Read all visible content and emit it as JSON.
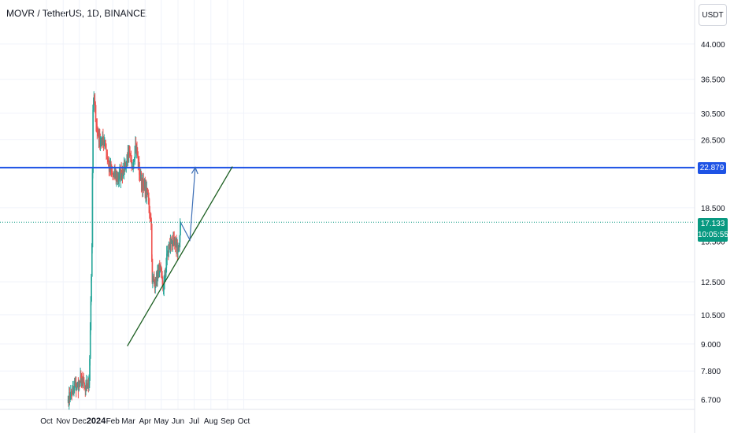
{
  "header": {
    "symbol_title": "MOVR / TetherUS, 1D, BINANCE",
    "currency_button": "USDT"
  },
  "price_axis": {
    "labels": [
      "44.000",
      "36.500",
      "30.500",
      "26.500",
      "18.500",
      "12.500",
      "10.500",
      "9.000",
      "7.800",
      "6.700"
    ],
    "level_badge": "22.879",
    "last_price": "17.133",
    "countdown": "10:05:55",
    "partially_hidden_label": "15.500"
  },
  "time_axis": {
    "labels": [
      "Oct",
      "Nov",
      "Dec",
      "2024",
      "Feb",
      "Mar",
      "Apr",
      "May",
      "Jun",
      "Jul",
      "Aug",
      "Sep",
      "Oct"
    ]
  },
  "colors": {
    "up": "#26a69a",
    "down": "#ef5350",
    "level_line": "#1e53e5",
    "trendline": "#1b5e20",
    "projection": "#3d6fb6",
    "last_price_line": "#089981"
  },
  "chart_data": {
    "type": "candlestick",
    "title": "MOVR / TetherUS, 1D, BINANCE",
    "y_scale": "log",
    "ylim": [
      6.5,
      47
    ],
    "x_range": [
      "2023-10-01",
      "2024-10-05"
    ],
    "horizontal_level": 22.879,
    "last_price": 17.133,
    "approx_daily_closes": [
      {
        "date": "2023-11-10",
        "close": 6.7
      },
      {
        "date": "2023-11-20",
        "close": 7.1
      },
      {
        "date": "2023-12-01",
        "close": 7.3
      },
      {
        "date": "2023-12-06",
        "close": 7.5
      },
      {
        "date": "2023-12-12",
        "close": 7.0
      },
      {
        "date": "2023-12-19",
        "close": 7.4
      },
      {
        "date": "2023-12-24",
        "close": 15.0
      },
      {
        "date": "2023-12-26",
        "close": 31.0
      },
      {
        "date": "2023-12-28",
        "close": 33.0
      },
      {
        "date": "2024-01-03",
        "close": 27.5
      },
      {
        "date": "2024-01-10",
        "close": 26.0
      },
      {
        "date": "2024-01-17",
        "close": 26.5
      },
      {
        "date": "2024-01-24",
        "close": 23.0
      },
      {
        "date": "2024-02-01",
        "close": 22.0
      },
      {
        "date": "2024-02-10",
        "close": 21.5
      },
      {
        "date": "2024-02-20",
        "close": 22.5
      },
      {
        "date": "2024-03-01",
        "close": 24.5
      },
      {
        "date": "2024-03-08",
        "close": 23.0
      },
      {
        "date": "2024-03-14",
        "close": 26.0
      },
      {
        "date": "2024-03-22",
        "close": 22.0
      },
      {
        "date": "2024-03-30",
        "close": 20.5
      },
      {
        "date": "2024-04-07",
        "close": 19.5
      },
      {
        "date": "2024-04-12",
        "close": 17.0
      },
      {
        "date": "2024-04-14",
        "close": 12.5
      },
      {
        "date": "2024-04-20",
        "close": 12.5
      },
      {
        "date": "2024-04-28",
        "close": 13.5
      },
      {
        "date": "2024-05-05",
        "close": 12.0
      },
      {
        "date": "2024-05-12",
        "close": 14.5
      },
      {
        "date": "2024-05-20",
        "close": 15.5
      },
      {
        "date": "2024-05-27",
        "close": 15.0
      },
      {
        "date": "2024-06-03",
        "close": 15.0
      },
      {
        "date": "2024-06-06",
        "close": 17.133
      }
    ],
    "trendline": [
      {
        "date": "2024-02-28",
        "price": 8.9
      },
      {
        "date": "2024-09-10",
        "price": 23.0
      }
    ],
    "projection_path": [
      {
        "date": "2024-06-06",
        "price": 17.1
      },
      {
        "date": "2024-06-23",
        "price": 15.6
      },
      {
        "date": "2024-07-03",
        "price": 22.9
      }
    ]
  }
}
